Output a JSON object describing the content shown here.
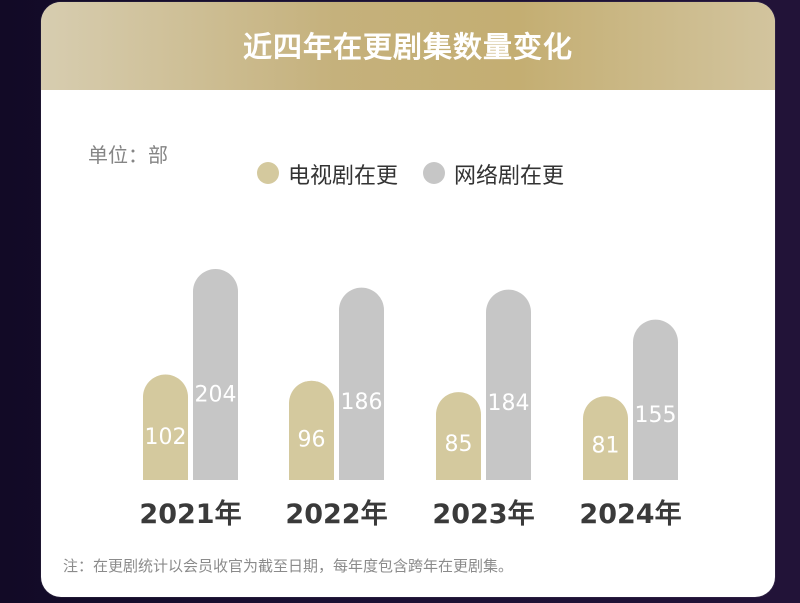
{
  "colors": {
    "tv": "#d4c99e",
    "web": "#c6c6c6",
    "header_gold": "#c4ae72"
  },
  "chart_data": {
    "type": "bar",
    "title": "近四年在更剧集数量变化",
    "unit_label": "单位：部",
    "categories": [
      "2021年",
      "2022年",
      "2023年",
      "2024年"
    ],
    "series": [
      {
        "name": "电视剧在更",
        "values": [
          102,
          96,
          85,
          81
        ]
      },
      {
        "name": "网络剧在更",
        "values": [
          204,
          186,
          184,
          155
        ]
      }
    ],
    "ylim": [
      0,
      204
    ],
    "grid": false,
    "legend_position": "top-center",
    "data_labels": true
  },
  "footnote": "注：在更剧统计以会员收官为截至日期，每年度包含跨年在更剧集。"
}
